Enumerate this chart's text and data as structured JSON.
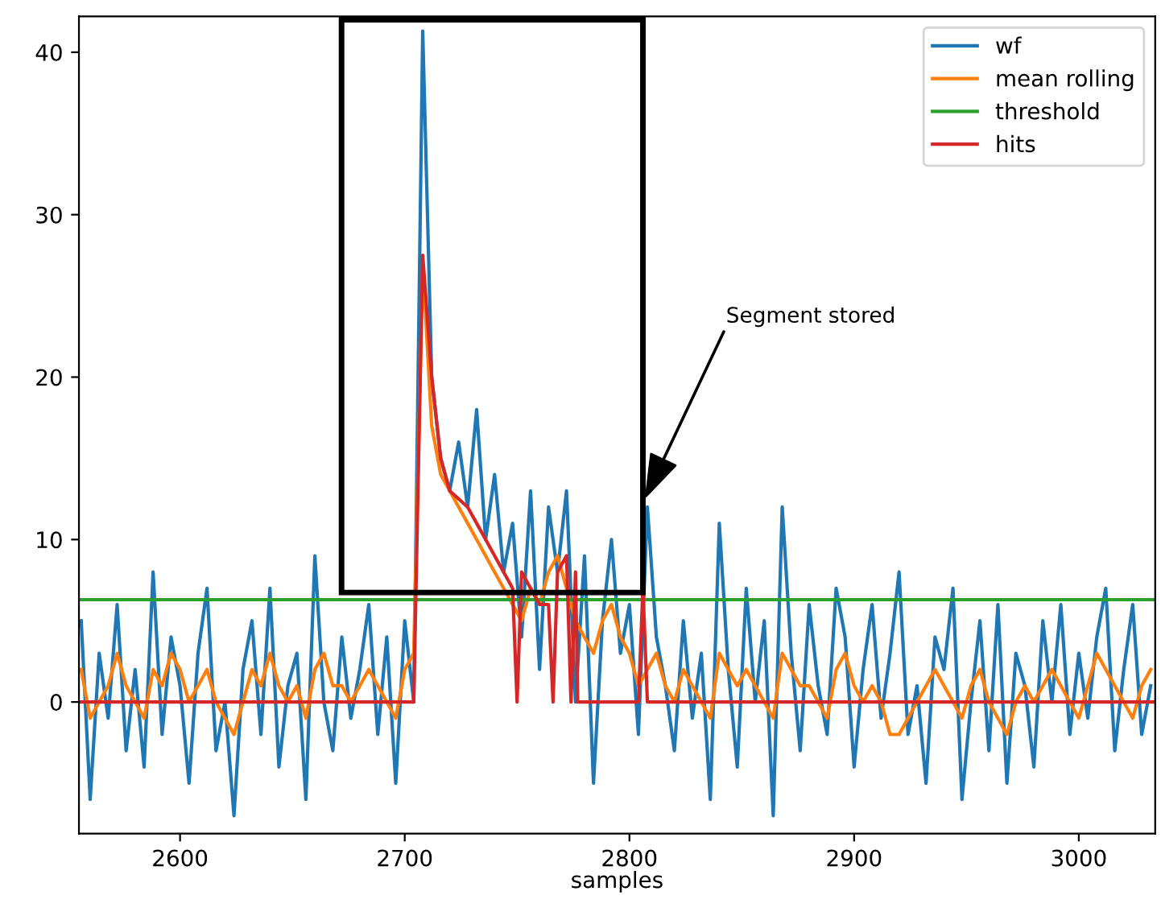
{
  "chart_data": {
    "type": "line",
    "xlabel": "samples",
    "xlim": [
      2555,
      3034
    ],
    "ylim": [
      -8.1,
      42.2
    ],
    "xticks": [
      2600,
      2700,
      2800,
      2900,
      3000
    ],
    "yticks": [
      0,
      10,
      20,
      30,
      40
    ],
    "legend": "top right",
    "grid": false,
    "x": [
      2556,
      2560,
      2564,
      2568,
      2572,
      2576,
      2580,
      2584,
      2588,
      2592,
      2596,
      2600,
      2604,
      2608,
      2612,
      2616,
      2620,
      2624,
      2628,
      2632,
      2636,
      2640,
      2644,
      2648,
      2652,
      2656,
      2660,
      2664,
      2668,
      2672,
      2676,
      2680,
      2684,
      2688,
      2692,
      2696,
      2700,
      2704,
      2708,
      2712,
      2716,
      2720,
      2724,
      2728,
      2732,
      2736,
      2740,
      2744,
      2748,
      2752,
      2756,
      2760,
      2764,
      2768,
      2772,
      2776,
      2780,
      2784,
      2788,
      2792,
      2796,
      2800,
      2804,
      2808,
      2812,
      2816,
      2820,
      2824,
      2828,
      2832,
      2836,
      2840,
      2844,
      2848,
      2852,
      2856,
      2860,
      2864,
      2868,
      2872,
      2876,
      2880,
      2884,
      2888,
      2892,
      2896,
      2900,
      2904,
      2908,
      2912,
      2916,
      2920,
      2924,
      2928,
      2932,
      2936,
      2940,
      2944,
      2948,
      2952,
      2956,
      2960,
      2964,
      2968,
      2972,
      2976,
      2980,
      2984,
      2988,
      2992,
      2996,
      3000,
      3004,
      3008,
      3012,
      3016,
      3020,
      3024,
      3028,
      3032
    ],
    "series": [
      {
        "name": "wf",
        "color": "#1f77b4",
        "values": [
          5,
          -6,
          3,
          -1,
          6,
          -3,
          2,
          -4,
          8,
          -2,
          4,
          1,
          -5,
          3,
          7,
          -3,
          0,
          -7,
          2,
          5,
          -2,
          7,
          -4,
          1,
          3,
          -6,
          9,
          0,
          -3,
          4,
          -1,
          2,
          6,
          -2,
          4,
          -5,
          5,
          0,
          41.3,
          20,
          15,
          13,
          16,
          12,
          18,
          10,
          14,
          8,
          11,
          4,
          13,
          2,
          12,
          8,
          13,
          0,
          9,
          -5,
          5,
          10,
          3,
          6,
          -2,
          12,
          4,
          1,
          -3,
          5,
          -1,
          3,
          -6,
          11,
          2,
          -4,
          7,
          0,
          5,
          -7,
          12,
          3,
          -3,
          6,
          1,
          -2,
          7,
          4,
          -4,
          2,
          6,
          -1,
          3,
          8,
          -2,
          1,
          -5,
          4,
          2,
          7,
          -6,
          0,
          5,
          -3,
          6,
          -5,
          3,
          1,
          -4,
          5,
          0,
          6,
          -2,
          3,
          -1,
          4,
          7,
          -3,
          2,
          6,
          -2,
          1
        ]
      },
      {
        "name": "mean rolling",
        "color": "#ff7f0e",
        "values": [
          2,
          -1,
          0,
          1,
          3,
          1,
          0,
          -1,
          2,
          1,
          3,
          2,
          0,
          1,
          2,
          0,
          -1,
          -2,
          0,
          2,
          1,
          3,
          1,
          0,
          1,
          -1,
          2,
          3,
          1,
          1,
          0,
          1,
          2,
          1,
          0,
          -1,
          2,
          3,
          27,
          17,
          14,
          13,
          12,
          11,
          10,
          9,
          8,
          7,
          6,
          5,
          7,
          6,
          8,
          9,
          7,
          5,
          4,
          3,
          5,
          6,
          4,
          3,
          1,
          2,
          3,
          1,
          0,
          2,
          1,
          0,
          -1,
          3,
          2,
          1,
          2,
          1,
          0,
          -1,
          3,
          2,
          1,
          1,
          0,
          -1,
          2,
          3,
          1,
          0,
          1,
          0,
          -2,
          -2,
          -1,
          0,
          1,
          2,
          1,
          0,
          -1,
          1,
          2,
          0,
          -1,
          -2,
          0,
          1,
          0,
          1,
          2,
          1,
          0,
          -1,
          1,
          3,
          2,
          1,
          0,
          -1,
          1,
          2
        ]
      },
      {
        "name": "threshold",
        "color": "#2ca02c",
        "x": [
          2555,
          3034
        ],
        "values": [
          6.3,
          6.3
        ]
      },
      {
        "name": "hits",
        "color": "#d62728",
        "x": [
          2556,
          2704,
          2708,
          2712,
          2716,
          2720,
          2724,
          2728,
          2732,
          2736,
          2740,
          2744,
          2748,
          2750,
          2752,
          2756,
          2760,
          2764,
          2766,
          2768,
          2772,
          2774,
          2776,
          2777,
          2804,
          2806,
          2808,
          3034
        ],
        "values": [
          0,
          0,
          27.5,
          20,
          15,
          13,
          12.5,
          12,
          11,
          10,
          9,
          8,
          7,
          0,
          8,
          7,
          6,
          6,
          0,
          8,
          9,
          0,
          8,
          0,
          0,
          7,
          0,
          0
        ]
      }
    ],
    "annotations": [
      "Segment stored"
    ]
  }
}
